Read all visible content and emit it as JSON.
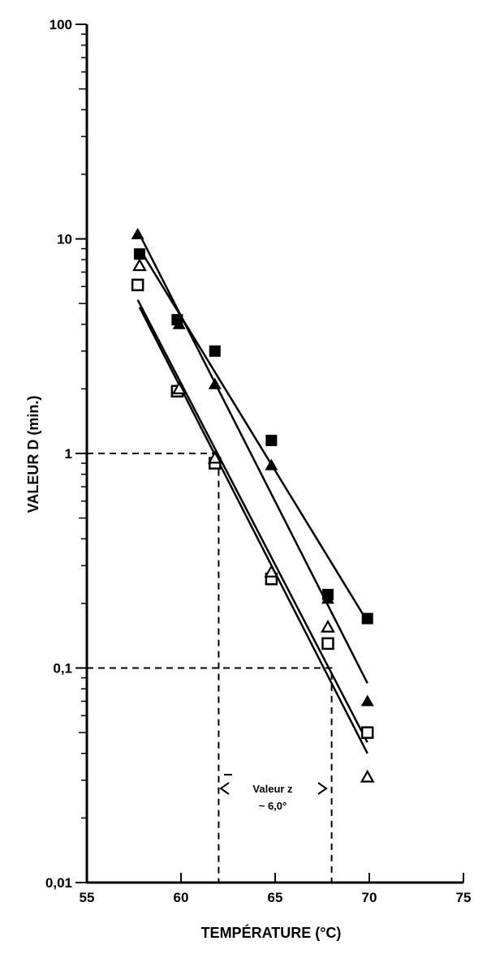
{
  "chart_data": {
    "type": "scatter",
    "title": "",
    "xlabel": "TEMPÉRATURE (°C)",
    "ylabel": "VALEUR D (min.)",
    "x_scale": "linear",
    "y_scale": "log",
    "xlim": [
      55,
      75
    ],
    "ylim": [
      0.01,
      100
    ],
    "x_ticks": [
      55,
      60,
      65,
      70,
      75
    ],
    "y_ticks": [
      {
        "value": 0.01,
        "label": "0,01"
      },
      {
        "value": 0.1,
        "label": "0,1"
      },
      {
        "value": 1,
        "label": "1"
      },
      {
        "value": 10,
        "label": "10"
      },
      {
        "value": 100,
        "label": "100"
      }
    ],
    "grid": false,
    "legend": "none",
    "series": [
      {
        "marker": "filled-square",
        "points": [
          [
            57.8,
            8.5
          ],
          [
            59.8,
            4.2
          ],
          [
            61.8,
            3.0
          ],
          [
            64.8,
            1.15
          ],
          [
            67.8,
            0.22
          ],
          [
            69.9,
            0.17
          ]
        ],
        "fit": [
          [
            57.8,
            9.0
          ],
          [
            69.8,
            0.17
          ]
        ]
      },
      {
        "marker": "filled-triangle",
        "points": [
          [
            57.7,
            10.5
          ],
          [
            59.9,
            4.0
          ],
          [
            61.8,
            2.1
          ],
          [
            64.8,
            0.88
          ],
          [
            67.8,
            0.21
          ],
          [
            69.9,
            0.07
          ]
        ],
        "fit": [
          [
            57.8,
            10.5
          ],
          [
            69.9,
            0.085
          ]
        ]
      },
      {
        "marker": "open-square",
        "points": [
          [
            57.7,
            6.1
          ],
          [
            59.8,
            1.95
          ],
          [
            61.8,
            0.9
          ],
          [
            64.8,
            0.26
          ],
          [
            67.8,
            0.13
          ],
          [
            69.9,
            0.05
          ]
        ],
        "fit": [
          [
            57.7,
            5.2
          ],
          [
            69.9,
            0.045
          ]
        ]
      },
      {
        "marker": "open-triangle",
        "points": [
          [
            57.8,
            7.5
          ],
          [
            59.9,
            2.0
          ],
          [
            61.8,
            0.95
          ],
          [
            64.8,
            0.28
          ],
          [
            67.8,
            0.155
          ],
          [
            69.9,
            0.031
          ]
        ],
        "fit": [
          [
            57.8,
            4.8
          ],
          [
            69.9,
            0.04
          ]
        ]
      }
    ],
    "annotations": {
      "guides": [
        {
          "x": 62,
          "y": 1
        },
        {
          "x": 68,
          "y": 0.1
        }
      ],
      "z_label_line1": "Valeur z",
      "z_label_line2": "~ 6,0°"
    }
  }
}
